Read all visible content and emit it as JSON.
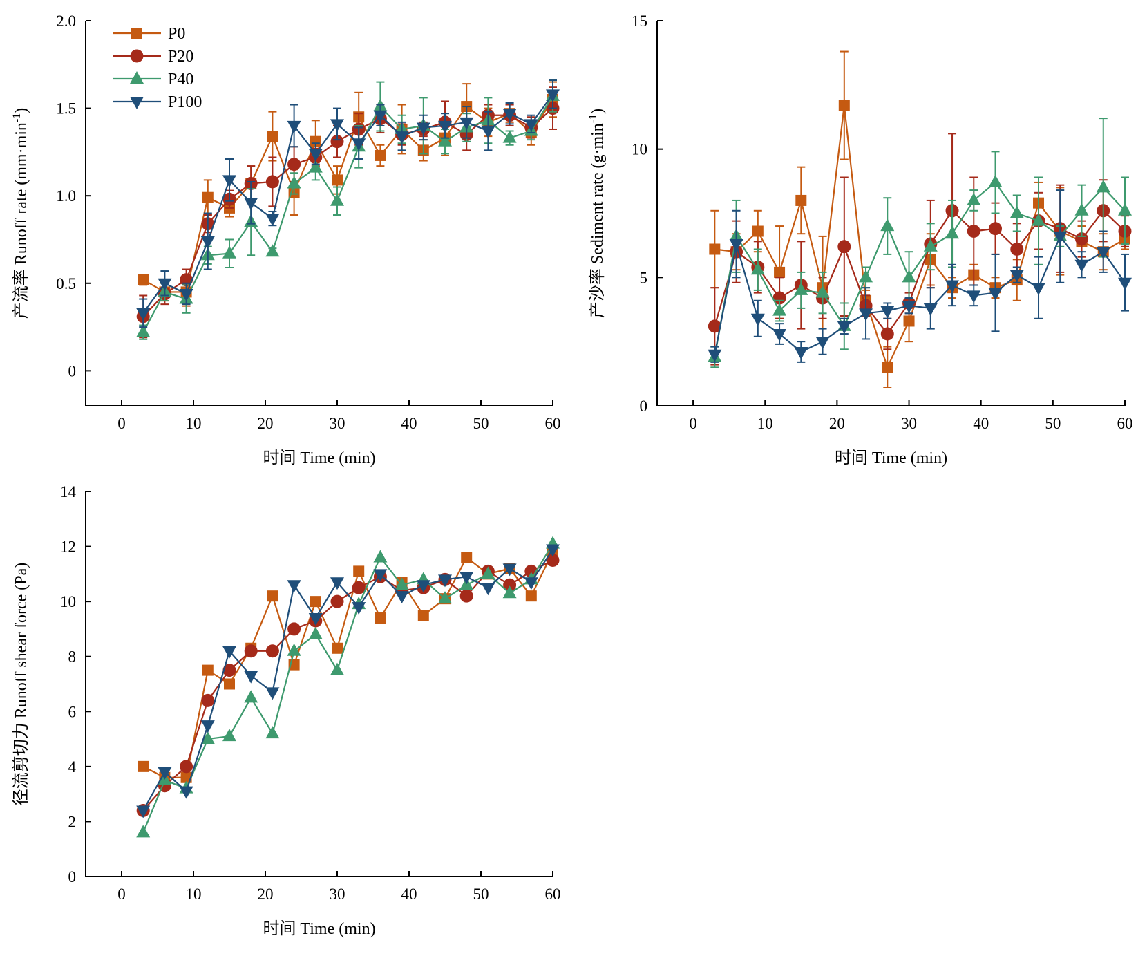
{
  "legend": {
    "placement": "top-left of first panel",
    "entries": [
      {
        "name": "P0",
        "color": "#C55A11",
        "marker": "square"
      },
      {
        "name": "P20",
        "color": "#A52A1A",
        "marker": "circle"
      },
      {
        "name": "P40",
        "color": "#3E9A6E",
        "marker": "triangle-up"
      },
      {
        "name": "P100",
        "color": "#1F4E79",
        "marker": "triangle-down"
      }
    ]
  },
  "chart_data": [
    {
      "type": "line",
      "ylabel_prefix": "产流率 Runoff rate (mm·min",
      "ylabel_sup": "-1",
      "ylabel_suffix": ")",
      "xlabel": "时间 Time (min)",
      "xlim": [
        -5,
        60
      ],
      "ylim": [
        -0.2,
        2.0
      ],
      "xticks": [
        0,
        10,
        20,
        30,
        40,
        50,
        60
      ],
      "yticks": [
        0,
        0.5,
        1.0,
        1.5,
        2.0
      ],
      "ytick_labels": [
        "0",
        "0.5",
        "1.0",
        "1.5",
        "2.0"
      ],
      "x": [
        3,
        6,
        9,
        12,
        15,
        18,
        21,
        24,
        27,
        30,
        33,
        36,
        39,
        42,
        45,
        48,
        51,
        54,
        57,
        60
      ],
      "series": [
        {
          "name": "P0",
          "values": [
            0.52,
            0.45,
            0.45,
            0.99,
            0.93,
            1.07,
            1.34,
            1.02,
            1.31,
            1.09,
            1.45,
            1.23,
            1.38,
            1.26,
            1.33,
            1.51,
            1.42,
            1.47,
            1.36,
            1.55
          ],
          "err": [
            0.03,
            0.05,
            0.08,
            0.1,
            0.05,
            0.1,
            0.14,
            0.13,
            0.12,
            0.08,
            0.14,
            0.06,
            0.14,
            0.06,
            0.1,
            0.13,
            0.08,
            0.05,
            0.07,
            0.1
          ]
        },
        {
          "name": "P20",
          "values": [
            0.31,
            0.44,
            0.52,
            0.84,
            0.98,
            1.07,
            1.08,
            1.18,
            1.22,
            1.31,
            1.38,
            1.44,
            1.35,
            1.38,
            1.42,
            1.35,
            1.46,
            1.46,
            1.39,
            1.5
          ],
          "err": [
            0.12,
            0.06,
            0.06,
            0.05,
            0.05,
            0.1,
            0.14,
            0.1,
            0.05,
            0.09,
            0.09,
            0.08,
            0.06,
            0.04,
            0.12,
            0.09,
            0.06,
            0.06,
            0.06,
            0.12
          ]
        },
        {
          "name": "P40",
          "values": [
            0.22,
            0.45,
            0.41,
            0.66,
            0.67,
            0.85,
            0.68,
            1.07,
            1.16,
            0.97,
            1.28,
            1.51,
            1.38,
            1.4,
            1.31,
            1.39,
            1.43,
            1.33,
            1.37,
            1.57
          ],
          "err": [
            0.04,
            0.05,
            0.08,
            0.05,
            0.08,
            0.19,
            0.02,
            0.06,
            0.07,
            0.08,
            0.12,
            0.14,
            0.08,
            0.16,
            0.07,
            0.08,
            0.13,
            0.04,
            0.05,
            0.09
          ]
        },
        {
          "name": "P100",
          "values": [
            0.33,
            0.5,
            0.44,
            0.74,
            1.09,
            0.96,
            0.87,
            1.4,
            1.24,
            1.41,
            1.3,
            1.46,
            1.34,
            1.39,
            1.4,
            1.42,
            1.37,
            1.47,
            1.41,
            1.58
          ],
          "err": [
            0.08,
            0.07,
            0.06,
            0.16,
            0.12,
            0.12,
            0.04,
            0.12,
            0.06,
            0.09,
            0.09,
            0.06,
            0.08,
            0.07,
            0.07,
            0.09,
            0.11,
            0.06,
            0.05,
            0.08
          ]
        }
      ]
    },
    {
      "type": "line",
      "ylabel_prefix": "产沙率 Sediment rate (g·min",
      "ylabel_sup": "-1",
      "ylabel_suffix": ")",
      "xlabel": "时间 Time (min)",
      "xlim": [
        -5,
        60
      ],
      "ylim": [
        0,
        15
      ],
      "xticks": [
        0,
        10,
        20,
        30,
        40,
        50,
        60
      ],
      "yticks": [
        0,
        5,
        10,
        15
      ],
      "ytick_labels": [
        "0",
        "5",
        "10",
        "15"
      ],
      "x": [
        3,
        6,
        9,
        12,
        15,
        18,
        21,
        24,
        27,
        30,
        33,
        36,
        39,
        42,
        45,
        48,
        51,
        54,
        57,
        60
      ],
      "series": [
        {
          "name": "P0",
          "values": [
            6.1,
            6.0,
            6.8,
            5.2,
            8.0,
            4.6,
            11.7,
            4.1,
            1.5,
            3.3,
            5.7,
            4.6,
            5.1,
            4.6,
            4.9,
            7.9,
            6.8,
            6.4,
            6.0,
            6.5
          ],
          "err": [
            1.5,
            0.7,
            0.8,
            1.8,
            1.3,
            2.0,
            2.1,
            0.4,
            0.8,
            0.8,
            1.0,
            0.4,
            0.4,
            0.4,
            0.8,
            0.8,
            1.7,
            0.6,
            0.7,
            0.4
          ]
        },
        {
          "name": "P20",
          "values": [
            3.1,
            6.0,
            5.4,
            4.2,
            4.7,
            4.2,
            6.2,
            3.9,
            2.8,
            4.0,
            6.3,
            7.6,
            6.8,
            6.9,
            6.1,
            7.2,
            6.9,
            6.5,
            7.6,
            6.8
          ],
          "err": [
            1.5,
            1.2,
            1.0,
            0.8,
            1.7,
            0.8,
            2.7,
            0.4,
            0.6,
            0.4,
            1.7,
            3.0,
            2.1,
            1.0,
            1.0,
            1.1,
            1.7,
            0.7,
            1.2,
            0.6
          ]
        },
        {
          "name": "P40",
          "values": [
            1.9,
            6.6,
            5.3,
            3.7,
            4.5,
            4.4,
            3.1,
            5.0,
            7.0,
            5.0,
            6.2,
            6.7,
            8.0,
            8.7,
            7.5,
            7.2,
            6.6,
            7.6,
            8.5,
            7.6
          ],
          "err": [
            0.4,
            1.4,
            0.8,
            0.4,
            0.7,
            0.8,
            0.9,
            0.4,
            1.1,
            1.0,
            0.9,
            1.3,
            0.4,
            1.2,
            0.7,
            1.7,
            0.4,
            1.0,
            2.7,
            1.3
          ]
        },
        {
          "name": "P100",
          "values": [
            2.0,
            6.3,
            3.4,
            2.8,
            2.1,
            2.5,
            3.1,
            3.6,
            3.7,
            3.9,
            3.8,
            4.7,
            4.3,
            4.4,
            5.1,
            4.6,
            6.6,
            5.5,
            6.0,
            4.8
          ],
          "err": [
            0.3,
            1.3,
            0.7,
            0.4,
            0.4,
            0.5,
            0.3,
            1.0,
            0.3,
            0.3,
            0.8,
            0.8,
            0.4,
            1.5,
            0.3,
            1.2,
            1.8,
            0.5,
            0.8,
            1.1
          ]
        }
      ]
    },
    {
      "type": "line",
      "ylabel_prefix": "径流剪切力 Runoff shear force (Pa)",
      "ylabel_sup": "",
      "ylabel_suffix": "",
      "xlabel": "时间 Time (min)",
      "xlim": [
        -5,
        60
      ],
      "ylim": [
        0,
        14
      ],
      "xticks": [
        0,
        10,
        20,
        30,
        40,
        50,
        60
      ],
      "yticks": [
        0,
        2,
        4,
        6,
        8,
        10,
        12,
        14
      ],
      "ytick_labels": [
        "0",
        "2",
        "4",
        "6",
        "8",
        "10",
        "12",
        "14"
      ],
      "x": [
        3,
        6,
        9,
        12,
        15,
        18,
        21,
        24,
        27,
        30,
        33,
        36,
        39,
        42,
        45,
        48,
        51,
        54,
        57,
        60
      ],
      "series": [
        {
          "name": "P0",
          "values": [
            4.0,
            3.6,
            3.6,
            7.5,
            7.0,
            8.3,
            10.2,
            7.7,
            10.0,
            8.3,
            11.1,
            9.4,
            10.7,
            9.5,
            10.1,
            11.6,
            11.0,
            11.2,
            10.2,
            11.8
          ],
          "err": []
        },
        {
          "name": "P20",
          "values": [
            2.4,
            3.3,
            4.0,
            6.4,
            7.5,
            8.2,
            8.2,
            9.0,
            9.3,
            10.0,
            10.5,
            10.9,
            10.4,
            10.5,
            10.8,
            10.2,
            11.1,
            10.6,
            11.1,
            11.5
          ],
          "err": []
        },
        {
          "name": "P40",
          "values": [
            1.6,
            3.5,
            3.2,
            5.0,
            5.1,
            6.5,
            5.2,
            8.2,
            8.8,
            7.5,
            9.9,
            11.6,
            10.6,
            10.8,
            10.1,
            10.6,
            11.0,
            10.3,
            10.8,
            12.1
          ],
          "err": []
        },
        {
          "name": "P100",
          "values": [
            2.4,
            3.8,
            3.1,
            5.5,
            8.2,
            7.3,
            6.7,
            10.6,
            9.4,
            10.7,
            9.8,
            11.0,
            10.2,
            10.6,
            10.8,
            10.9,
            10.5,
            11.2,
            10.7,
            11.9
          ],
          "err": []
        }
      ]
    }
  ]
}
